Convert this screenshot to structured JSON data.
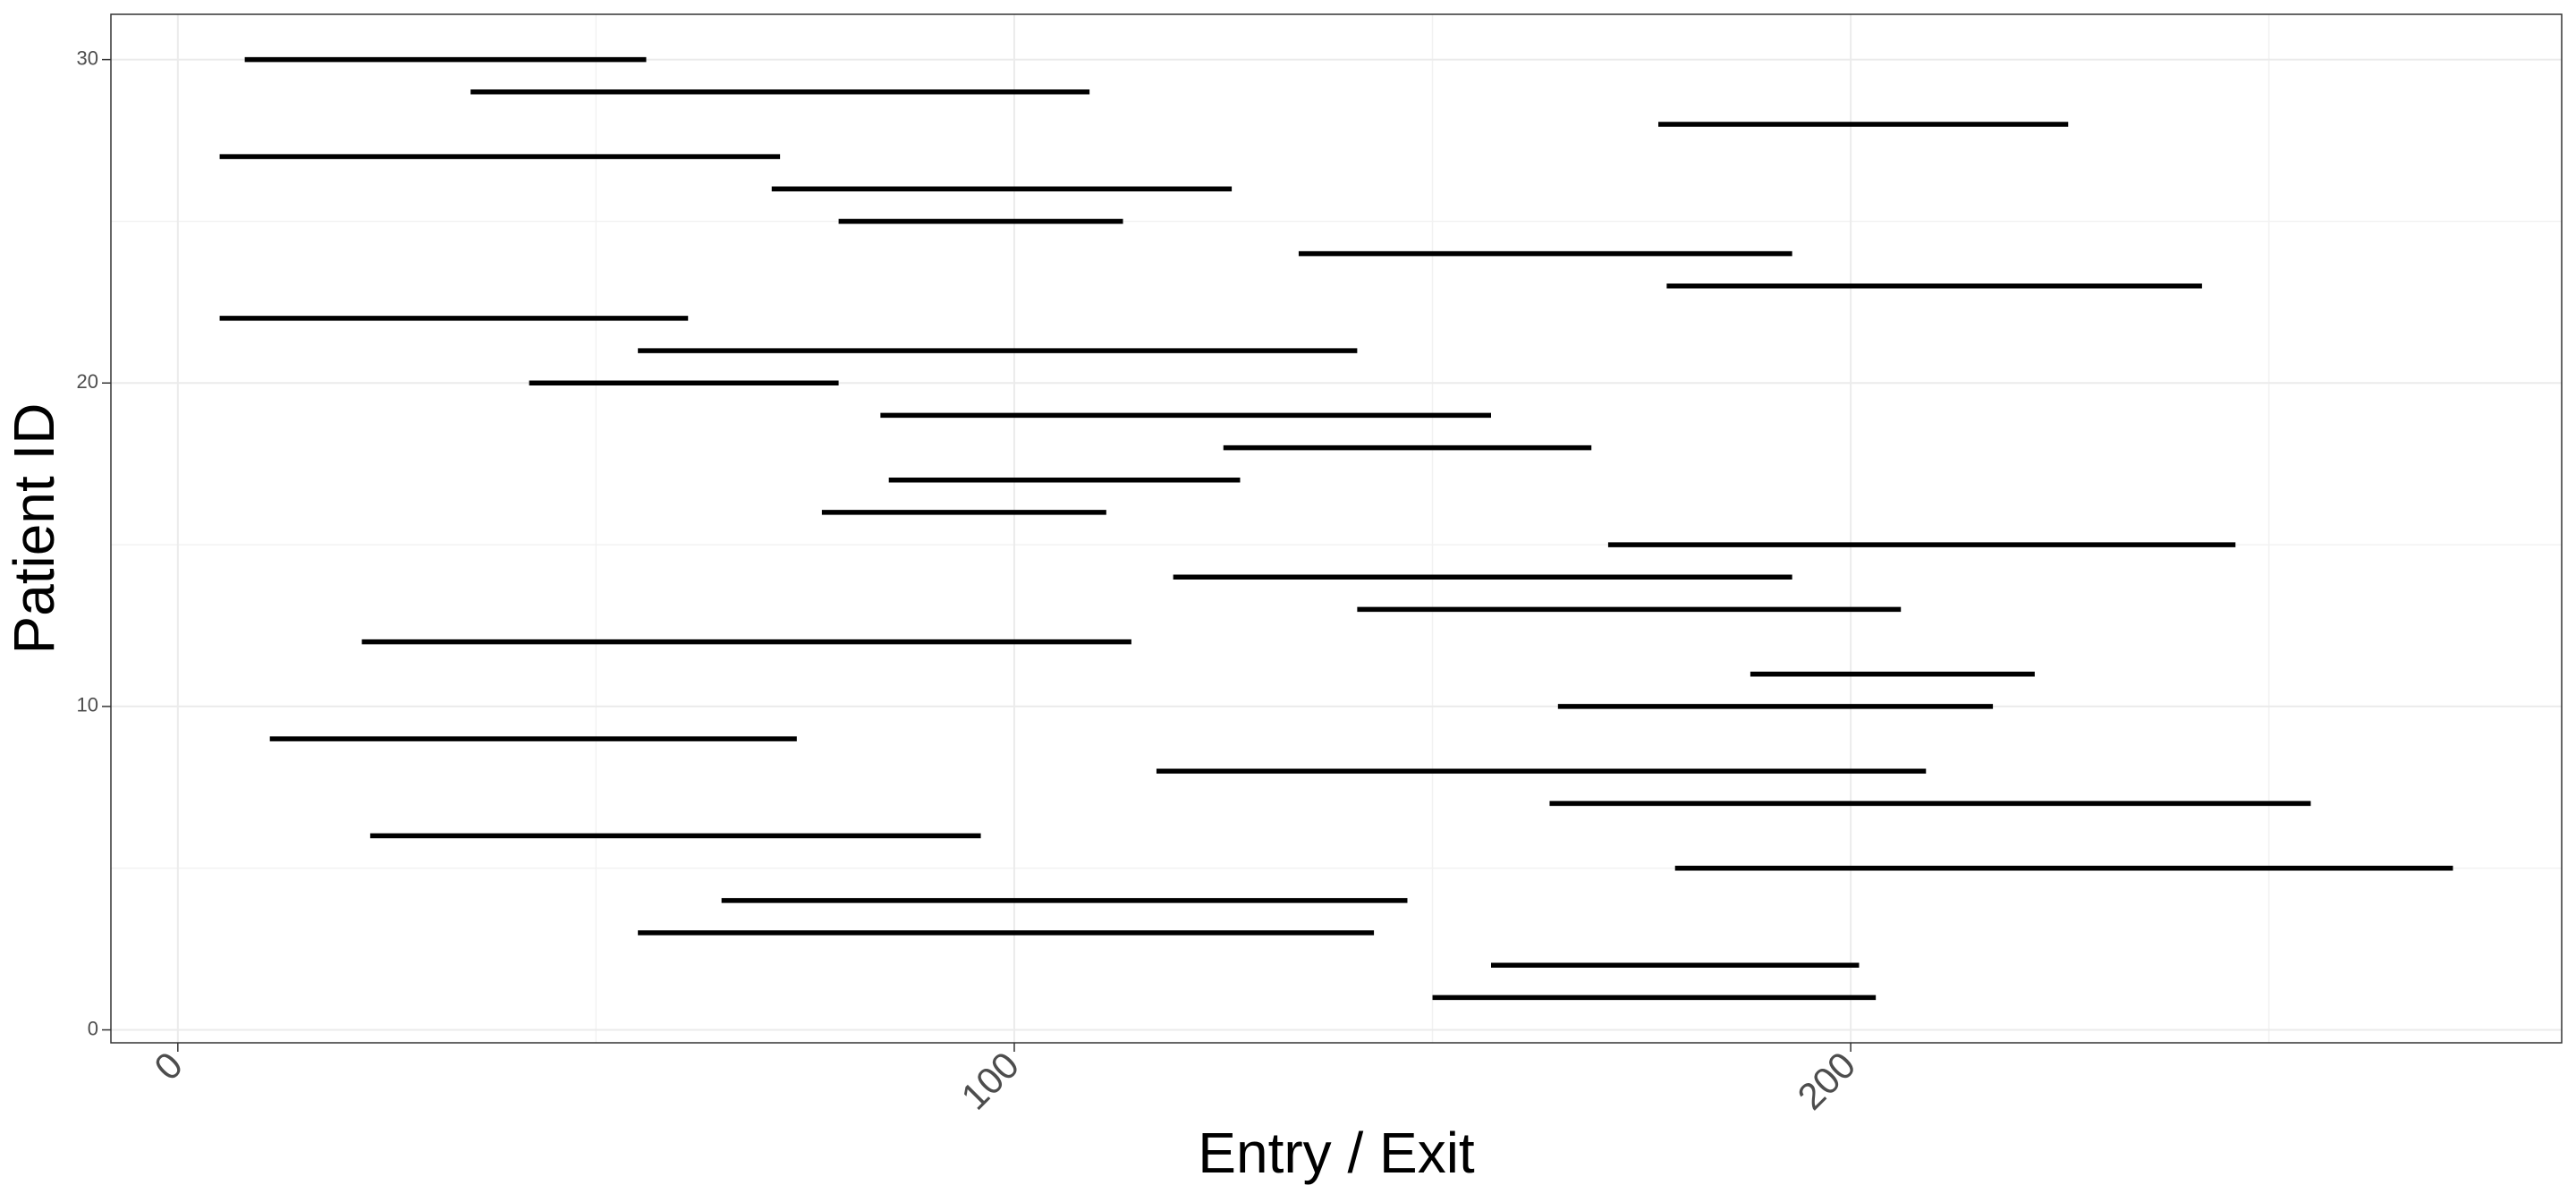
{
  "chart_data": {
    "type": "segment",
    "title": "",
    "xlabel": "Entry / Exit",
    "ylabel": "Patient ID",
    "xlim": [
      -8,
      285
    ],
    "ylim": [
      -0.4,
      31.4
    ],
    "x_ticks": [
      0,
      100,
      200
    ],
    "x_tick_labels": [
      "0",
      "100",
      "200"
    ],
    "y_ticks": [
      0,
      10,
      20,
      30
    ],
    "y_tick_labels": [
      "0",
      "10",
      "20",
      "30"
    ],
    "grid": true,
    "legend": "none",
    "segment_color": "#000000",
    "segments": [
      {
        "id": 1,
        "entry": 150,
        "exit": 203
      },
      {
        "id": 2,
        "entry": 157,
        "exit": 201
      },
      {
        "id": 3,
        "entry": 55,
        "exit": 143
      },
      {
        "id": 4,
        "entry": 65,
        "exit": 147
      },
      {
        "id": 5,
        "entry": 179,
        "exit": 272
      },
      {
        "id": 6,
        "entry": 23,
        "exit": 96
      },
      {
        "id": 7,
        "entry": 164,
        "exit": 255
      },
      {
        "id": 8,
        "entry": 117,
        "exit": 209
      },
      {
        "id": 9,
        "entry": 11,
        "exit": 74
      },
      {
        "id": 10,
        "entry": 165,
        "exit": 217
      },
      {
        "id": 11,
        "entry": 188,
        "exit": 222
      },
      {
        "id": 12,
        "entry": 22,
        "exit": 114
      },
      {
        "id": 13,
        "entry": 141,
        "exit": 206
      },
      {
        "id": 14,
        "entry": 119,
        "exit": 193
      },
      {
        "id": 15,
        "entry": 171,
        "exit": 246
      },
      {
        "id": 16,
        "entry": 77,
        "exit": 111
      },
      {
        "id": 17,
        "entry": 85,
        "exit": 127
      },
      {
        "id": 18,
        "entry": 125,
        "exit": 169
      },
      {
        "id": 19,
        "entry": 84,
        "exit": 157
      },
      {
        "id": 20,
        "entry": 42,
        "exit": 79
      },
      {
        "id": 21,
        "entry": 55,
        "exit": 141
      },
      {
        "id": 22,
        "entry": 5,
        "exit": 61
      },
      {
        "id": 23,
        "entry": 178,
        "exit": 242
      },
      {
        "id": 24,
        "entry": 134,
        "exit": 193
      },
      {
        "id": 25,
        "entry": 79,
        "exit": 113
      },
      {
        "id": 26,
        "entry": 71,
        "exit": 126
      },
      {
        "id": 27,
        "entry": 5,
        "exit": 72
      },
      {
        "id": 28,
        "entry": 177,
        "exit": 226
      },
      {
        "id": 29,
        "entry": 35,
        "exit": 109
      },
      {
        "id": 30,
        "entry": 8,
        "exit": 56
      }
    ]
  }
}
